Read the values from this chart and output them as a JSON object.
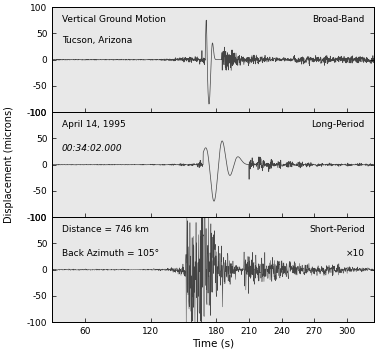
{
  "xlabel": "Time (s)",
  "ylabel": "Displacement (microns)",
  "xlim": [
    30,
    325
  ],
  "ylim": [
    -100,
    100
  ],
  "xticks": [
    60,
    120,
    180,
    210,
    240,
    270,
    300
  ],
  "yticks": [
    -100,
    -50,
    0,
    50,
    100
  ],
  "panel1_label_left1": "Vertical Ground Motion",
  "panel1_label_left2": "Tucson, Arizona",
  "panel1_label_right": "Broad-Band",
  "panel2_label_left1": "April 14, 1995",
  "panel2_label_left2": "00:34:02.000",
  "panel2_label_right": "Long-Period",
  "panel3_label_left1": "Distance = 746 km",
  "panel3_label_left2": "Back Azimuth = 105°",
  "panel3_label_right1": "Short-Period",
  "panel3_label_right2": "×10",
  "line_color": "#444444",
  "bg_color": "#e8e8e8"
}
